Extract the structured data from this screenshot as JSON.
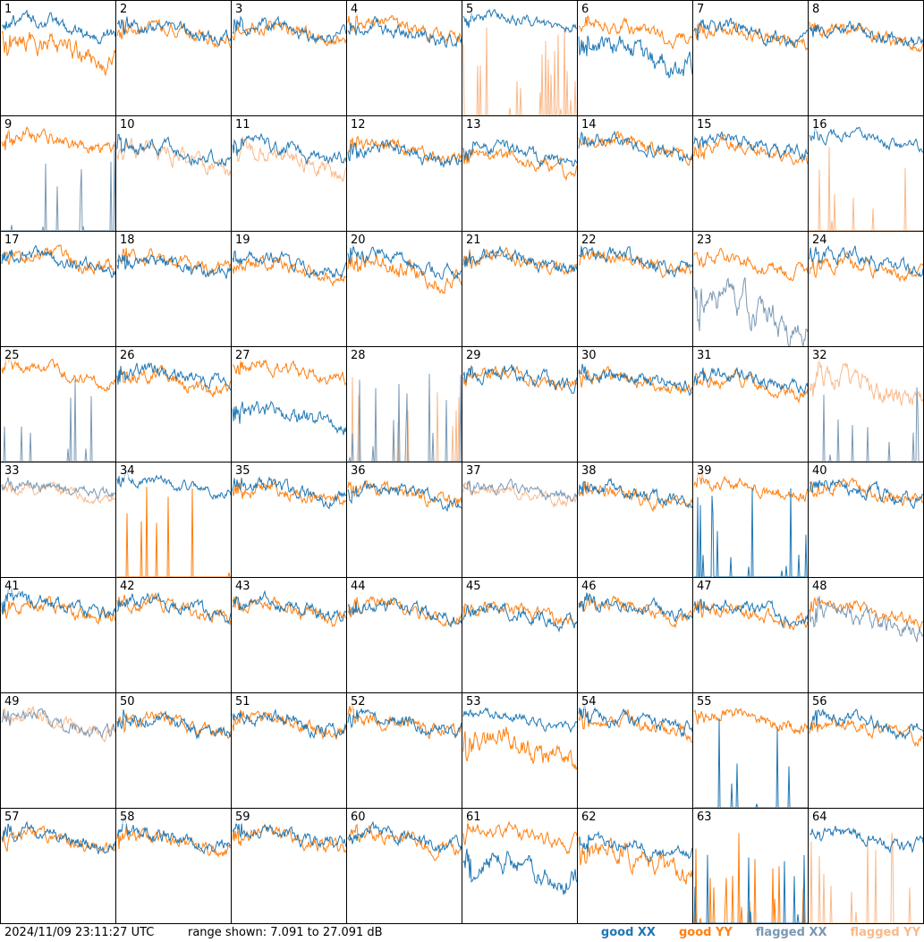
{
  "footer": {
    "timestamp": "2024/11/09 23:11:27 UTC",
    "range": "range shown: 7.091 to 27.091 dB"
  },
  "legend": {
    "good_xx": "good XX",
    "good_yy": "good YY",
    "flagged_xx": "flagged XX",
    "flagged_yy": "flagged YY"
  },
  "colors": {
    "good_xx": "#1f77b4",
    "good_yy": "#ff7f0e",
    "flagged_xx": "#7a98b4",
    "flagged_yy": "#f9b98a"
  },
  "chart_data": {
    "type": "line",
    "title": "",
    "xlabel": "",
    "ylabel": "",
    "ylim": [
      7.091,
      27.091
    ],
    "grid": false,
    "legend_placement": "bottom-right",
    "panel_count": 64,
    "layout": "8x8 small multiples",
    "series_names": [
      "good XX",
      "good YY",
      "flagged XX",
      "flagged YY"
    ],
    "panels": [
      {
        "label": "1",
        "xx": "good",
        "yy": "good",
        "xx_level": 22.5,
        "yy_level": 18.5,
        "xx_var": 1.5,
        "yy_var": 2.5
      },
      {
        "label": "2",
        "xx": "good",
        "yy": "good",
        "xx_level": 22.0,
        "yy_level": 21.5,
        "xx_var": 1.5,
        "yy_var": 1.5
      },
      {
        "label": "3",
        "xx": "good",
        "yy": "good",
        "xx_level": 22.0,
        "yy_level": 21.5,
        "xx_var": 1.5,
        "yy_var": 1.5
      },
      {
        "label": "4",
        "xx": "good",
        "yy": "good",
        "xx_level": 21.5,
        "yy_level": 22.0,
        "xx_var": 1.5,
        "yy_var": 1.5
      },
      {
        "label": "5",
        "xx": "good",
        "yy": "flagged",
        "xx_level": 23.5,
        "yy_level": 7.091,
        "xx_var": 1.2,
        "yy_var": 0
      },
      {
        "label": "6",
        "xx": "good",
        "yy": "good",
        "xx_level": 17.5,
        "yy_level": 22.0,
        "xx_var": 2.5,
        "yy_var": 1.5
      },
      {
        "label": "7",
        "xx": "good",
        "yy": "good",
        "xx_level": 21.5,
        "yy_level": 21.0,
        "xx_var": 1.5,
        "yy_var": 1.5
      },
      {
        "label": "8",
        "xx": "good",
        "yy": "good",
        "xx_level": 21.0,
        "yy_level": 21.0,
        "xx_var": 1.5,
        "yy_var": 1.5
      },
      {
        "label": "9",
        "xx": "flagged",
        "yy": "good",
        "xx_level": 7.091,
        "yy_level": 22.5,
        "xx_var": 0,
        "yy_var": 1.5
      },
      {
        "label": "10",
        "xx": "good",
        "yy": "flagged",
        "xx_level": 21.0,
        "yy_level": 20.0,
        "xx_var": 1.5,
        "yy_var": 2.0
      },
      {
        "label": "11",
        "xx": "good",
        "yy": "flagged",
        "xx_level": 21.0,
        "yy_level": 19.5,
        "xx_var": 1.5,
        "yy_var": 2.0
      },
      {
        "label": "12",
        "xx": "good",
        "yy": "good",
        "xx_level": 20.5,
        "yy_level": 21.0,
        "xx_var": 1.5,
        "yy_var": 1.5
      },
      {
        "label": "13",
        "xx": "good",
        "yy": "good",
        "xx_level": 20.5,
        "yy_level": 19.0,
        "xx_var": 1.5,
        "yy_var": 1.5
      },
      {
        "label": "14",
        "xx": "good",
        "yy": "good",
        "xx_level": 22.0,
        "yy_level": 22.0,
        "xx_var": 1.5,
        "yy_var": 1.5
      },
      {
        "label": "15",
        "xx": "good",
        "yy": "good",
        "xx_level": 22.0,
        "yy_level": 21.0,
        "xx_var": 1.5,
        "yy_var": 1.5
      },
      {
        "label": "16",
        "xx": "good",
        "yy": "flagged",
        "xx_level": 23.0,
        "yy_level": 7.091,
        "xx_var": 1.2,
        "yy_var": 0
      },
      {
        "label": "17",
        "xx": "good",
        "yy": "good",
        "xx_level": 22.0,
        "yy_level": 22.0,
        "xx_var": 1.5,
        "yy_var": 1.5
      },
      {
        "label": "18",
        "xx": "good",
        "yy": "good",
        "xx_level": 21.0,
        "yy_level": 21.5,
        "xx_var": 1.5,
        "yy_var": 1.5
      },
      {
        "label": "19",
        "xx": "good",
        "yy": "good",
        "xx_level": 21.5,
        "yy_level": 20.5,
        "xx_var": 1.5,
        "yy_var": 1.5
      },
      {
        "label": "20",
        "xx": "good",
        "yy": "good",
        "xx_level": 21.5,
        "yy_level": 20.0,
        "xx_var": 1.5,
        "yy_var": 2.0
      },
      {
        "label": "21",
        "xx": "good",
        "yy": "good",
        "xx_level": 22.0,
        "yy_level": 21.5,
        "xx_var": 1.5,
        "yy_var": 1.5
      },
      {
        "label": "22",
        "xx": "good",
        "yy": "good",
        "xx_level": 22.0,
        "yy_level": 21.5,
        "xx_var": 1.5,
        "yy_var": 1.5
      },
      {
        "label": "23",
        "xx": "flagged",
        "yy": "good",
        "xx_level": 13.0,
        "yy_level": 21.5,
        "xx_var": 3.5,
        "yy_var": 1.5
      },
      {
        "label": "24",
        "xx": "good",
        "yy": "good",
        "xx_level": 22.0,
        "yy_level": 20.5,
        "xx_var": 1.5,
        "yy_var": 1.5
      },
      {
        "label": "25",
        "xx": "flagged",
        "yy": "good",
        "xx_level": 7.091,
        "yy_level": 22.5,
        "xx_var": 0,
        "yy_var": 1.5
      },
      {
        "label": "26",
        "xx": "good",
        "yy": "good",
        "xx_level": 22.0,
        "yy_level": 21.0,
        "xx_var": 1.5,
        "yy_var": 1.5
      },
      {
        "label": "27",
        "xx": "good",
        "yy": "good",
        "xx_level": 15.0,
        "yy_level": 23.0,
        "xx_var": 2.0,
        "yy_var": 1.5
      },
      {
        "label": "28",
        "xx": "flagged",
        "yy": "flagged",
        "xx_level": 7.091,
        "yy_level": 7.091,
        "xx_var": 0,
        "yy_var": 0
      },
      {
        "label": "29",
        "xx": "good",
        "yy": "good",
        "xx_level": 22.0,
        "yy_level": 21.5,
        "xx_var": 1.5,
        "yy_var": 1.5
      },
      {
        "label": "30",
        "xx": "good",
        "yy": "good",
        "xx_level": 21.5,
        "yy_level": 21.0,
        "xx_var": 1.5,
        "yy_var": 1.5
      },
      {
        "label": "31",
        "xx": "good",
        "yy": "good",
        "xx_level": 21.5,
        "yy_level": 20.5,
        "xx_var": 1.5,
        "yy_var": 1.5
      },
      {
        "label": "32",
        "xx": "flagged",
        "yy": "flagged",
        "xx_level": 7.091,
        "yy_level": 20.0,
        "xx_var": 0,
        "yy_var": 2.5
      },
      {
        "label": "33",
        "xx": "flagged",
        "yy": "flagged",
        "xx_level": 22.5,
        "yy_level": 22.0,
        "xx_var": 1.2,
        "yy_var": 1.2
      },
      {
        "label": "34",
        "xx": "good",
        "yy": "good",
        "xx_level": 23.0,
        "yy_level": 7.091,
        "xx_var": 1.2,
        "yy_var": 0
      },
      {
        "label": "35",
        "xx": "good",
        "yy": "good",
        "xx_level": 22.0,
        "yy_level": 21.5,
        "xx_var": 1.5,
        "yy_var": 1.5
      },
      {
        "label": "36",
        "xx": "good",
        "yy": "good",
        "xx_level": 21.5,
        "yy_level": 21.5,
        "xx_var": 1.5,
        "yy_var": 1.5
      },
      {
        "label": "37",
        "xx": "flagged",
        "yy": "flagged",
        "xx_level": 22.0,
        "yy_level": 21.5,
        "xx_var": 1.2,
        "yy_var": 1.2
      },
      {
        "label": "38",
        "xx": "good",
        "yy": "good",
        "xx_level": 21.5,
        "yy_level": 21.0,
        "xx_var": 1.5,
        "yy_var": 1.5
      },
      {
        "label": "39",
        "xx": "good",
        "yy": "good",
        "xx_level": 7.091,
        "yy_level": 22.5,
        "xx_var": 0,
        "yy_var": 1.5
      },
      {
        "label": "40",
        "xx": "good",
        "yy": "good",
        "xx_level": 22.0,
        "yy_level": 22.0,
        "xx_var": 1.5,
        "yy_var": 1.5
      },
      {
        "label": "41",
        "xx": "good",
        "yy": "good",
        "xx_level": 22.0,
        "yy_level": 21.5,
        "xx_var": 1.5,
        "yy_var": 1.5
      },
      {
        "label": "42",
        "xx": "good",
        "yy": "good",
        "xx_level": 22.0,
        "yy_level": 21.5,
        "xx_var": 1.5,
        "yy_var": 1.5
      },
      {
        "label": "43",
        "xx": "good",
        "yy": "good",
        "xx_level": 22.0,
        "yy_level": 21.5,
        "xx_var": 1.5,
        "yy_var": 1.5
      },
      {
        "label": "44",
        "xx": "good",
        "yy": "good",
        "xx_level": 21.5,
        "yy_level": 21.5,
        "xx_var": 1.5,
        "yy_var": 1.5
      },
      {
        "label": "45",
        "xx": "good",
        "yy": "good",
        "xx_level": 20.5,
        "yy_level": 21.0,
        "xx_var": 1.5,
        "yy_var": 1.5
      },
      {
        "label": "46",
        "xx": "good",
        "yy": "good",
        "xx_level": 22.0,
        "yy_level": 21.5,
        "xx_var": 1.5,
        "yy_var": 1.5
      },
      {
        "label": "47",
        "xx": "good",
        "yy": "good",
        "xx_level": 21.5,
        "yy_level": 20.5,
        "xx_var": 1.5,
        "yy_var": 1.5
      },
      {
        "label": "48",
        "xx": "flagged",
        "yy": "good",
        "xx_level": 19.5,
        "yy_level": 21.0,
        "xx_var": 2.0,
        "yy_var": 1.5
      },
      {
        "label": "49",
        "xx": "flagged",
        "yy": "flagged",
        "xx_level": 22.0,
        "yy_level": 22.0,
        "xx_var": 1.5,
        "yy_var": 1.5
      },
      {
        "label": "50",
        "xx": "good",
        "yy": "good",
        "xx_level": 21.5,
        "yy_level": 21.5,
        "xx_var": 1.5,
        "yy_var": 1.5
      },
      {
        "label": "51",
        "xx": "good",
        "yy": "good",
        "xx_level": 22.0,
        "yy_level": 21.5,
        "xx_var": 1.5,
        "yy_var": 1.5
      },
      {
        "label": "52",
        "xx": "good",
        "yy": "good",
        "xx_level": 22.0,
        "yy_level": 21.5,
        "xx_var": 1.5,
        "yy_var": 1.5
      },
      {
        "label": "53",
        "xx": "good",
        "yy": "good",
        "xx_level": 22.5,
        "yy_level": 17.5,
        "xx_var": 1.2,
        "yy_var": 2.5
      },
      {
        "label": "54",
        "xx": "good",
        "yy": "good",
        "xx_level": 22.0,
        "yy_level": 21.5,
        "xx_var": 1.5,
        "yy_var": 1.5
      },
      {
        "label": "55",
        "xx": "good",
        "yy": "good",
        "xx_level": 7.091,
        "yy_level": 22.5,
        "xx_var": 0,
        "yy_var": 1.5
      },
      {
        "label": "56",
        "xx": "good",
        "yy": "good",
        "xx_level": 22.0,
        "yy_level": 21.0,
        "xx_var": 1.5,
        "yy_var": 1.5
      },
      {
        "label": "57",
        "xx": "good",
        "yy": "good",
        "xx_level": 22.0,
        "yy_level": 21.5,
        "xx_var": 1.5,
        "yy_var": 1.5
      },
      {
        "label": "58",
        "xx": "good",
        "yy": "good",
        "xx_level": 22.0,
        "yy_level": 21.0,
        "xx_var": 1.5,
        "yy_var": 1.5
      },
      {
        "label": "59",
        "xx": "good",
        "yy": "good",
        "xx_level": 22.0,
        "yy_level": 21.5,
        "xx_var": 1.5,
        "yy_var": 1.5
      },
      {
        "label": "60",
        "xx": "good",
        "yy": "good",
        "xx_level": 22.0,
        "yy_level": 21.5,
        "xx_var": 1.5,
        "yy_var": 1.5
      },
      {
        "label": "61",
        "xx": "good",
        "yy": "good",
        "xx_level": 16.5,
        "yy_level": 22.5,
        "xx_var": 2.5,
        "yy_var": 1.5
      },
      {
        "label": "62",
        "xx": "good",
        "yy": "good",
        "xx_level": 20.5,
        "yy_level": 18.5,
        "xx_var": 1.5,
        "yy_var": 2.5
      },
      {
        "label": "63",
        "xx": "good",
        "yy": "good",
        "xx_level": 7.091,
        "yy_level": 7.091,
        "xx_var": 0,
        "yy_var": 0
      },
      {
        "label": "64",
        "xx": "good",
        "yy": "flagged",
        "xx_level": 22.0,
        "yy_level": 7.091,
        "xx_var": 1.5,
        "yy_var": 0
      }
    ]
  }
}
